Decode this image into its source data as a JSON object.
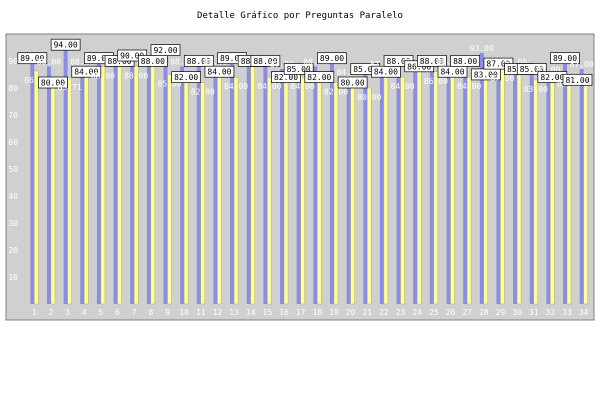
{
  "chart_data": {
    "type": "bar",
    "title": "Detalle Gráfico por Preguntas Paralelo",
    "xlabel": "",
    "ylabel": "",
    "ylim": [
      0,
      100
    ],
    "yticks": [
      10,
      20,
      30,
      40,
      50,
      60,
      70,
      80,
      90
    ],
    "grid": false,
    "legend": "none",
    "colors": {
      "plot_bg": "#d0d0d0",
      "series_a": "#8c8ce6",
      "series_b": "#ffff99",
      "label_box": "#ffffff"
    },
    "categories": [
      "1",
      "2",
      "3",
      "4",
      "5",
      "6",
      "7",
      "8",
      "9",
      "10",
      "11",
      "12",
      "13",
      "14",
      "15",
      "16",
      "17",
      "18",
      "19",
      "20",
      "21",
      "22",
      "23",
      "24",
      "25",
      "26",
      "27",
      "28",
      "29",
      "30",
      "31",
      "32",
      "33",
      "34"
    ],
    "series": [
      {
        "values": [
          89.0,
          88.0,
          94.0,
          88.0,
          89.0,
          89.0,
          90.0,
          88.0,
          92.0,
          88.0,
          88.0,
          88.0,
          89.0,
          88.0,
          88.0,
          87.0,
          85.0,
          88.0,
          89.0,
          84.0,
          85.0,
          87.0,
          88.0,
          88.0,
          88.0,
          88.0,
          88.0,
          93.0,
          87.0,
          88.0,
          85.0,
          85.0,
          89.0,
          87.0
        ]
      },
      {
        "values": [
          86.3,
          80.0,
          83.71,
          84.0,
          88.0,
          88.0,
          88.0,
          88.0,
          85.0,
          82.0,
          82.0,
          84.0,
          84.0,
          88.0,
          84.0,
          82.0,
          84.0,
          82.0,
          82.0,
          80.0,
          80.0,
          84.0,
          84.0,
          86.0,
          86.0,
          84.0,
          84.0,
          83.0,
          87.0,
          85.0,
          83.0,
          82.0,
          85.0,
          81.0
        ]
      }
    ]
  }
}
